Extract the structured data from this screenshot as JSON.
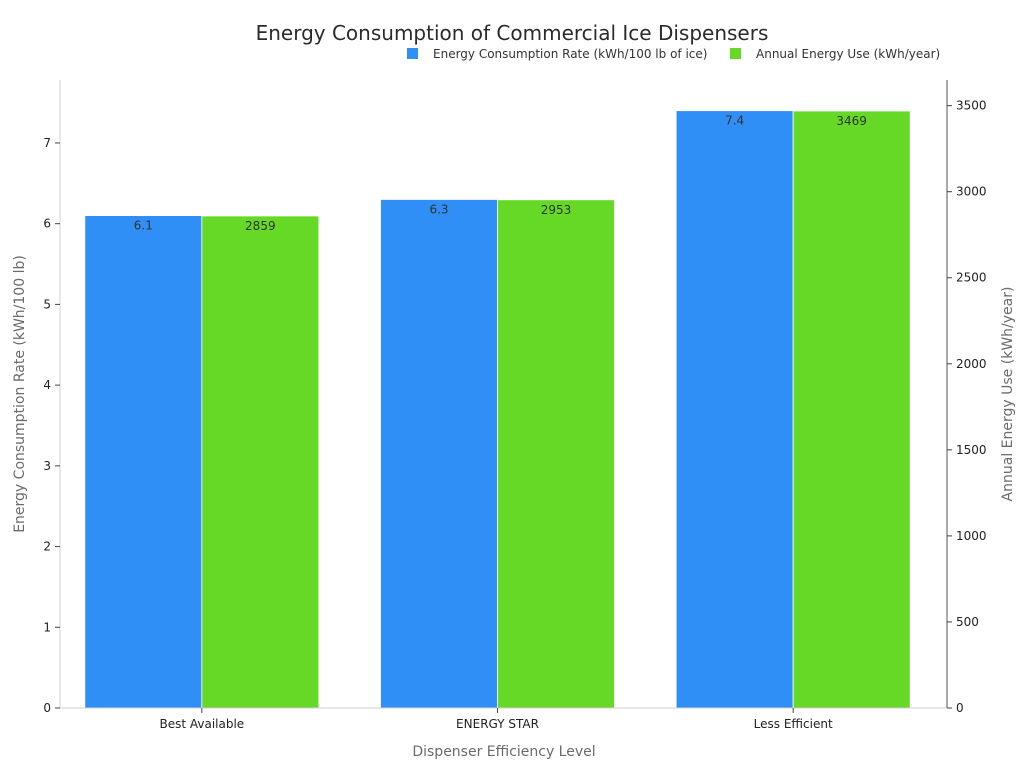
{
  "chart_data": {
    "type": "bar",
    "title": "Energy Consumption of Commercial Ice Dispensers",
    "xlabel": "Dispenser Efficiency Level",
    "ylabel": "Energy Consumption Rate (kWh/100 lb)",
    "y2label": "Annual Energy Use (kWh/year)",
    "categories": [
      "Best Available",
      "ENERGY STAR",
      "Less Efficient"
    ],
    "series": [
      {
        "name": "Energy Consumption Rate (kWh/100 lb of ice)",
        "axis": "left",
        "color": "#2f8ff7",
        "values": [
          6.1,
          6.3,
          7.4
        ],
        "labels": [
          "6.1",
          "6.3",
          "7.4"
        ]
      },
      {
        "name": "Annual Energy Use (kWh/year)",
        "axis": "right",
        "color": "#66d926",
        "values": [
          2859,
          2953,
          3469
        ],
        "labels": [
          "2859",
          "2953",
          "3469"
        ]
      }
    ],
    "ylim": [
      0,
      7.78
    ],
    "y2lim": [
      0,
      3649
    ],
    "yticks": [
      0,
      1,
      2,
      3,
      4,
      5,
      6,
      7
    ],
    "y2ticks": [
      0,
      500,
      1000,
      1500,
      2000,
      2500,
      3000,
      3500
    ],
    "grid": false,
    "legend_position": "top-right"
  }
}
